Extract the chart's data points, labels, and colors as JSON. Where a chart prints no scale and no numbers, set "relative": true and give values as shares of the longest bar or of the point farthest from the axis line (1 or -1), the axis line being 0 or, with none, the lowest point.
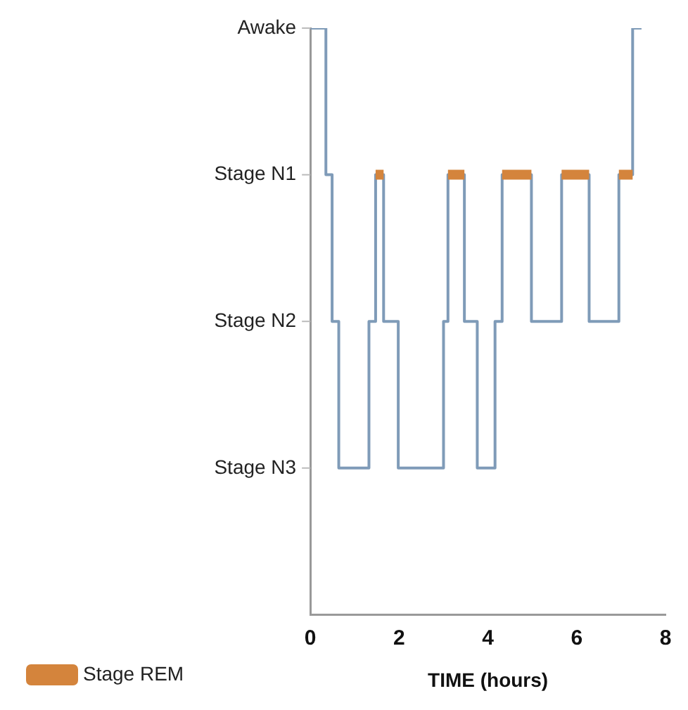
{
  "chart_data": {
    "type": "step",
    "xlabel": "TIME (hours)",
    "xlim": [
      0,
      8
    ],
    "xticks": [
      0,
      2,
      4,
      6,
      8
    ],
    "relative": true,
    "annotations": [
      "Awake",
      "Stage N1",
      "Stage N2",
      "Stage N3"
    ],
    "grid": false,
    "legend": "bottom left",
    "marker": "none",
    "line_style": "solid",
    "series": [
      {
        "color": "#7f9bb8",
        "x": [
          0,
          0.35,
          0.49,
          0.64,
          1.32,
          1.47,
          1.65,
          1.98,
          3.0,
          3.1,
          3.47,
          3.76,
          4.16,
          4.32,
          4.98,
          5.66,
          6.28,
          6.95,
          7.26,
          7.46
        ],
        "values": [
          1,
          0.75,
          0.5,
          0.25,
          0.5,
          0.75,
          0.5,
          0.25,
          0.5,
          0.75,
          0.5,
          0.25,
          0.5,
          0.75,
          0.5,
          0.75,
          0.5,
          0.75,
          1,
          1
        ]
      },
      {
        "type": "line",
        "name": "Stage REM",
        "color": "#d4843c",
        "x": [
          1.47,
          1.65,
          2.0,
          3.1,
          3.47,
          4.0,
          4.32,
          4.98,
          5.3,
          5.66,
          6.28,
          6.6,
          6.95,
          7.26
        ],
        "values": [
          0.75,
          0.75,
          null,
          0.75,
          0.75,
          null,
          0.75,
          0.75,
          null,
          0.75,
          0.75,
          null,
          0.75,
          0.75
        ]
      }
    ]
  }
}
